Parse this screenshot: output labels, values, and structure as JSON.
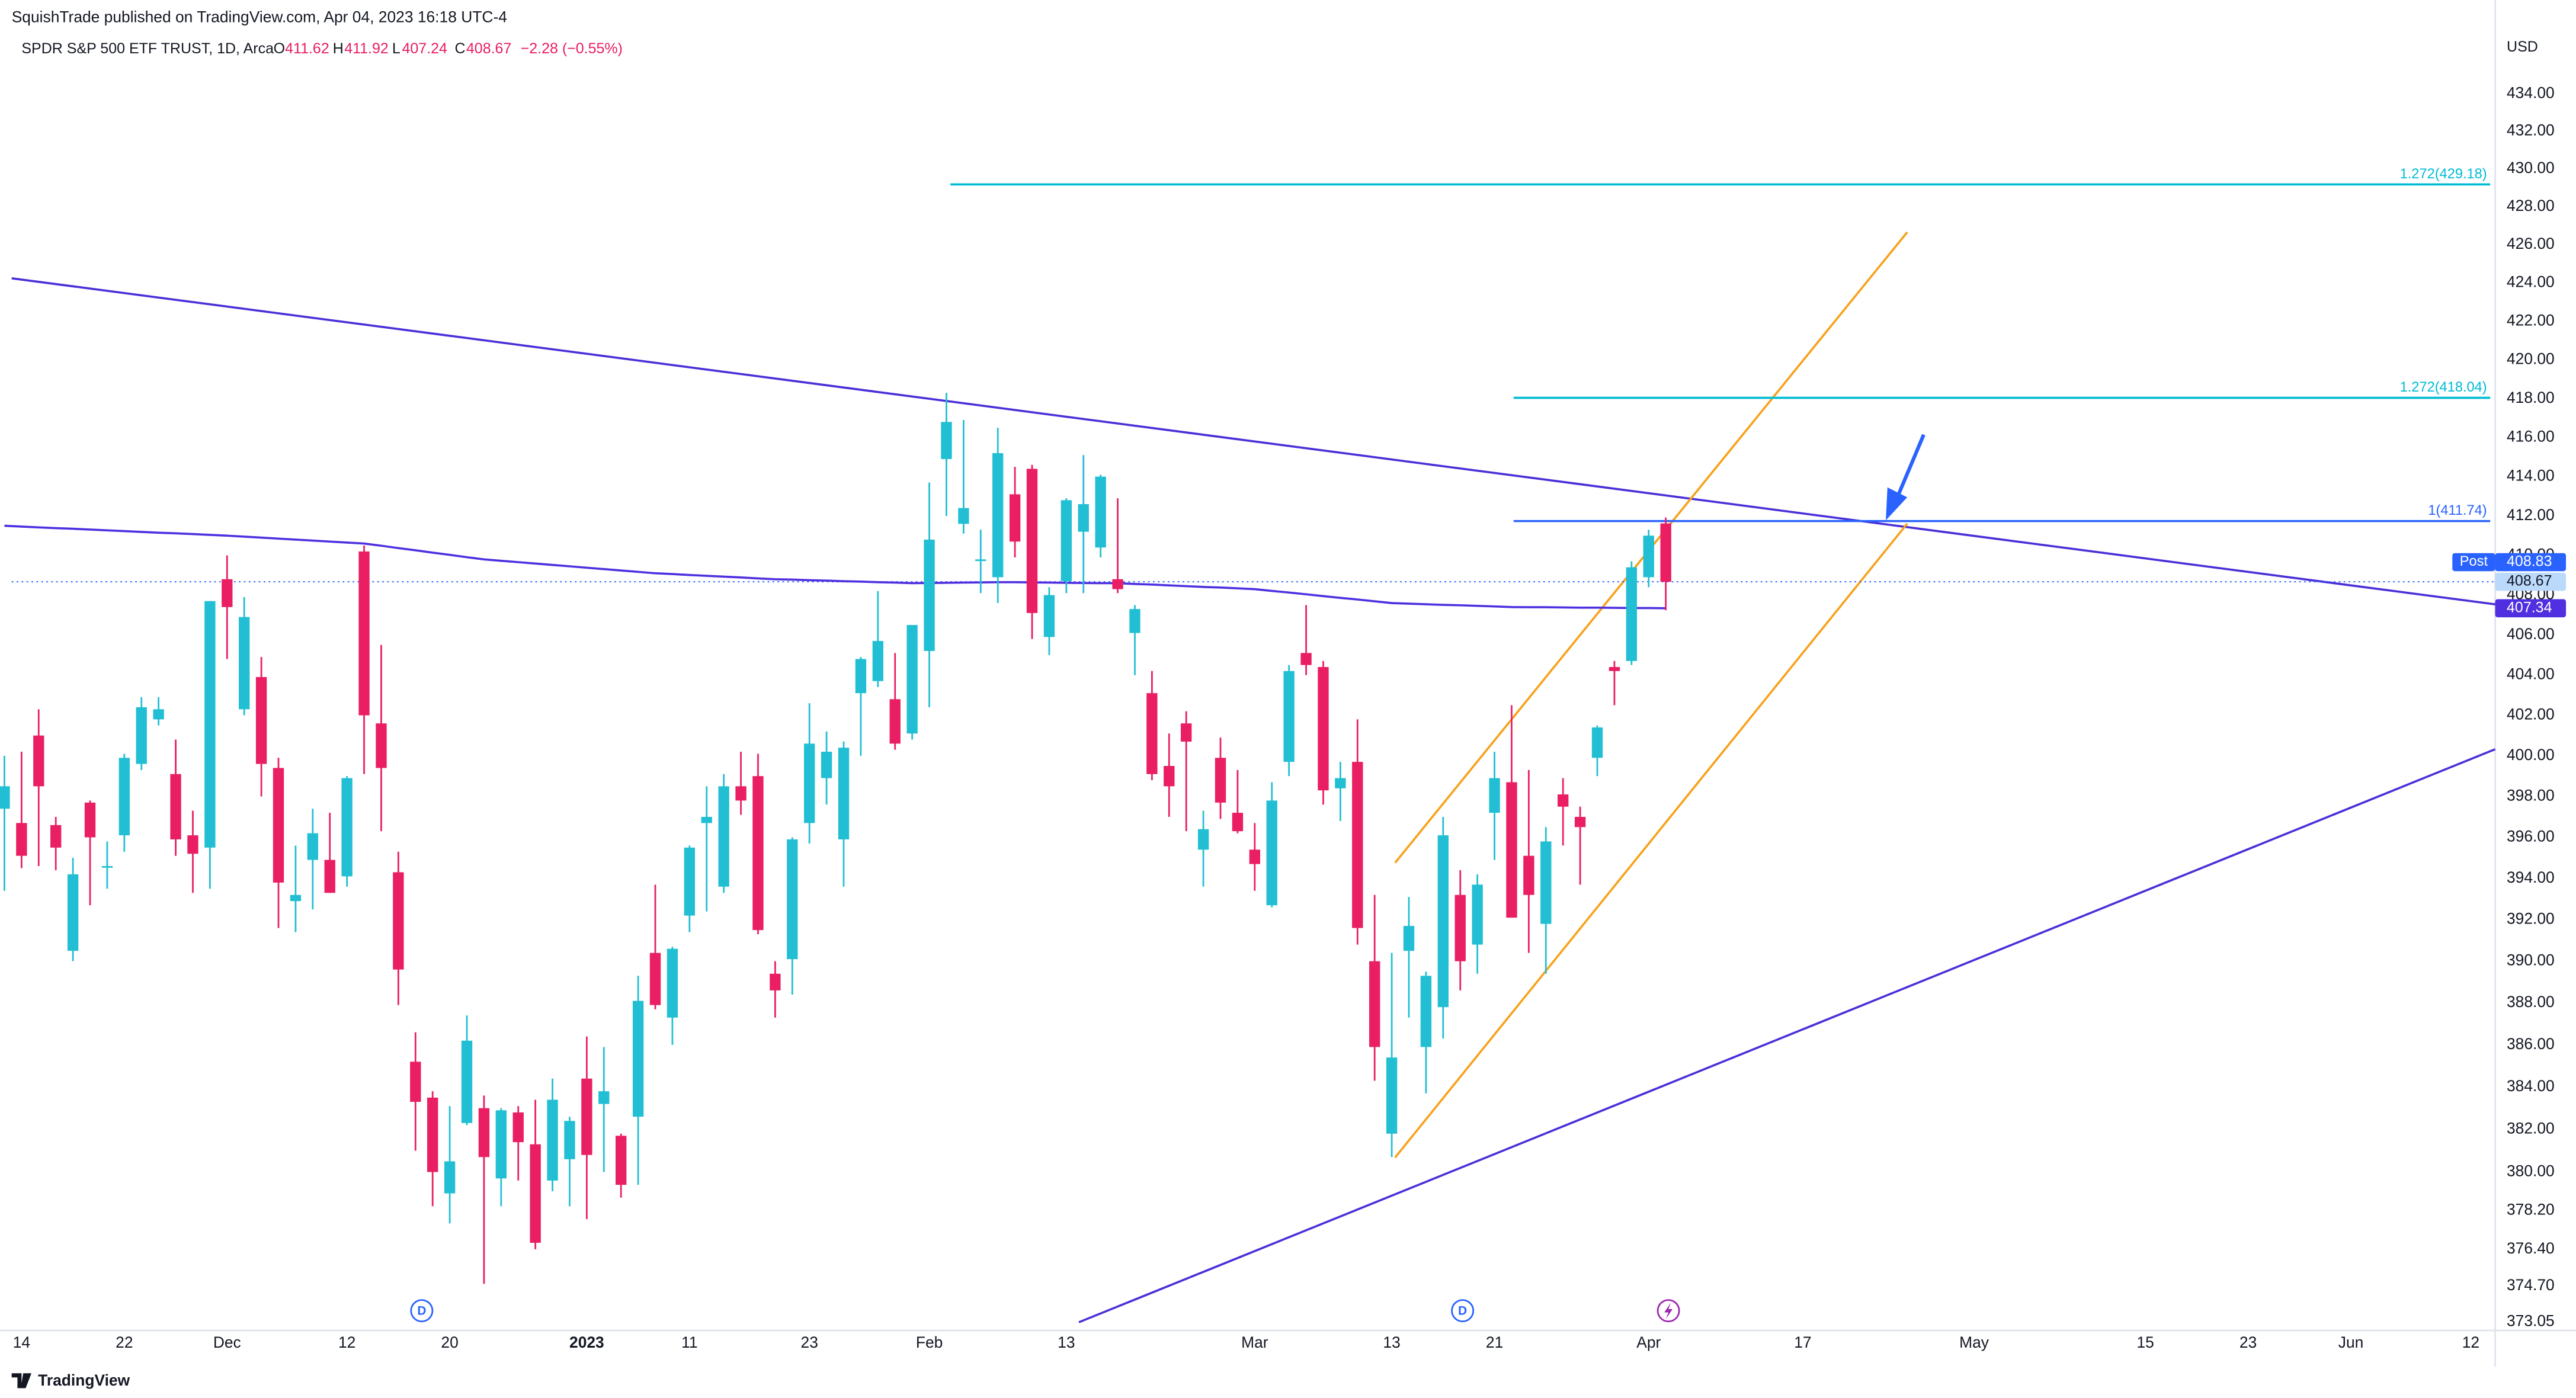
{
  "header": {
    "published": "SquishTrade published on TradingView.com, Apr 04, 2023 16:18 UTC-4",
    "brand": "TradingView"
  },
  "chart_data": {
    "type": "candlestick",
    "title": "SPDR S&P 500 ETF TRUST, 1D, Arca",
    "ohlc_labels": [
      "O",
      "H",
      "L",
      "C"
    ],
    "change": "−2.28 (−0.55%)",
    "unit": "USD",
    "up_color": "#22bfd4",
    "down_color": "#e91e63",
    "log_scale": true,
    "grid": false,
    "ylim": [
      372.65,
      435.94
    ],
    "yticks": [
      {
        "value": 434,
        "label": "434.00"
      },
      {
        "value": 432,
        "label": "432.00"
      },
      {
        "value": 430,
        "label": "430.00"
      },
      {
        "value": 428,
        "label": "428.00"
      },
      {
        "value": 426,
        "label": "426.00"
      },
      {
        "value": 424,
        "label": "424.00"
      },
      {
        "value": 422,
        "label": "422.00"
      },
      {
        "value": 420,
        "label": "420.00"
      },
      {
        "value": 418,
        "label": "418.00"
      },
      {
        "value": 416,
        "label": "416.00"
      },
      {
        "value": 414,
        "label": "414.00"
      },
      {
        "value": 412,
        "label": "412.00"
      },
      {
        "value": 410,
        "label": "410.00"
      },
      {
        "value": 408,
        "label": "408.00"
      },
      {
        "value": 406,
        "label": "406.00"
      },
      {
        "value": 404,
        "label": "404.00"
      },
      {
        "value": 402,
        "label": "402.00"
      },
      {
        "value": 400,
        "label": "400.00"
      },
      {
        "value": 398,
        "label": "398.00"
      },
      {
        "value": 396,
        "label": "396.00"
      },
      {
        "value": 394,
        "label": "394.00"
      },
      {
        "value": 392,
        "label": "392.00"
      },
      {
        "value": 390,
        "label": "390.00"
      },
      {
        "value": 388,
        "label": "388.00"
      },
      {
        "value": 386,
        "label": "386.00"
      },
      {
        "value": 384,
        "label": "384.00"
      },
      {
        "value": 382,
        "label": "382.00"
      },
      {
        "value": 380,
        "label": "380.00"
      },
      {
        "value": 378.2,
        "label": "378.20"
      },
      {
        "value": 376.4,
        "label": "376.40"
      },
      {
        "value": 374.7,
        "label": "374.70"
      },
      {
        "value": 373.05,
        "label": "373.05"
      }
    ],
    "categories": [
      null,
      "14",
      null,
      null,
      null,
      null,
      null,
      "22",
      null,
      null,
      null,
      null,
      null,
      "Dec",
      null,
      null,
      null,
      null,
      null,
      null,
      "12",
      null,
      null,
      null,
      null,
      null,
      "20",
      null,
      null,
      null,
      null,
      null,
      null,
      null,
      "2023",
      null,
      null,
      null,
      null,
      null,
      "11",
      null,
      null,
      null,
      null,
      null,
      null,
      "23",
      null,
      null,
      null,
      null,
      null,
      null,
      "Feb",
      null,
      null,
      null,
      null,
      null,
      null,
      null,
      "13",
      null,
      null,
      null,
      null,
      null,
      null,
      null,
      null,
      null,
      null,
      "Mar",
      null,
      null,
      null,
      null,
      null,
      null,
      null,
      "13",
      null,
      null,
      null,
      null,
      null,
      "21",
      null,
      null,
      null,
      null,
      null,
      null,
      null,
      null,
      "Apr",
      null,
      null,
      null,
      null,
      null,
      null,
      null,
      null,
      "17",
      null,
      null,
      null,
      null,
      null,
      null,
      null,
      null,
      null,
      "May",
      null,
      null,
      null,
      null,
      null,
      null,
      null,
      null,
      null,
      "15",
      null,
      null,
      null,
      null,
      null,
      "23",
      null,
      null,
      null,
      null,
      null,
      "Jun",
      null,
      null,
      null,
      null,
      null,
      null,
      "12",
      null
    ],
    "open": [
      397.4,
      396.7,
      401.0,
      396.6,
      390.5,
      397.7,
      394.6,
      396.1,
      399.6,
      401.8,
      399.1,
      396.1,
      395.5,
      408.8,
      402.3,
      403.9,
      399.4,
      392.9,
      394.9,
      394.9,
      394.1,
      410.2,
      401.6,
      394.3,
      385.2,
      383.5,
      379.0,
      382.3,
      383.0,
      379.7,
      382.8,
      381.3,
      379.6,
      380.6,
      384.4,
      383.2,
      381.7,
      382.6,
      390.4,
      387.3,
      392.2,
      396.7,
      393.6,
      398.5,
      399.0,
      389.4,
      390.1,
      396.7,
      398.9,
      395.9,
      403.1,
      403.7,
      402.8,
      401.1,
      405.2,
      414.9,
      411.6,
      409.8,
      408.9,
      413.1,
      414.4,
      405.9,
      408.7,
      411.2,
      410.4,
      408.8,
      406.1,
      403.1,
      399.5,
      401.6,
      395.4,
      399.9,
      397.2,
      395.4,
      392.7,
      399.7,
      405.1,
      404.4,
      398.4,
      399.7,
      390.0,
      381.8,
      390.5,
      385.9,
      387.8,
      393.2,
      390.8,
      397.2,
      398.7,
      395.1,
      391.8,
      398.1,
      397.0,
      399.9,
      404.4,
      404.7,
      408.9,
      411.62,
      null,
      null,
      null,
      null,
      null,
      null,
      null,
      null,
      null,
      null,
      null,
      null,
      null,
      null,
      null,
      null,
      null,
      null,
      null,
      null,
      null,
      null,
      null,
      null,
      null,
      null,
      null,
      null,
      null,
      null,
      null,
      null,
      null,
      null,
      null,
      null,
      null,
      null,
      null,
      null,
      null,
      null,
      null,
      null,
      null,
      null,
      null,
      null
    ],
    "high": [
      400.0,
      400.2,
      402.3,
      397.0,
      395.0,
      397.8,
      395.8,
      400.1,
      402.9,
      402.9,
      400.8,
      397.3,
      407.7,
      410.0,
      407.9,
      404.9,
      399.9,
      395.6,
      397.4,
      397.2,
      399.0,
      410.5,
      405.5,
      395.3,
      386.6,
      383.8,
      383.1,
      387.4,
      383.6,
      383.0,
      383.1,
      383.4,
      384.4,
      382.6,
      386.4,
      385.9,
      381.8,
      389.3,
      393.7,
      390.7,
      395.6,
      398.5,
      399.1,
      400.2,
      400.1,
      390.0,
      396.0,
      402.6,
      401.2,
      400.7,
      404.9,
      408.2,
      405.1,
      406.5,
      413.7,
      418.3,
      416.9,
      411.3,
      416.5,
      414.5,
      414.6,
      408.4,
      412.9,
      415.1,
      414.1,
      412.9,
      407.5,
      404.2,
      401.1,
      402.2,
      397.3,
      400.9,
      399.3,
      396.7,
      398.7,
      404.5,
      407.5,
      404.7,
      399.7,
      401.8,
      393.2,
      390.4,
      393.1,
      389.5,
      397.0,
      394.4,
      394.2,
      400.2,
      402.5,
      399.3,
      396.5,
      398.9,
      397.5,
      401.5,
      404.7,
      409.7,
      411.3,
      411.92,
      null,
      null,
      null,
      null,
      null,
      null,
      null,
      null,
      null,
      null,
      null,
      null,
      null,
      null,
      null,
      null,
      null,
      null,
      null,
      null,
      null,
      null,
      null,
      null,
      null,
      null,
      null,
      null,
      null,
      null,
      null,
      null,
      null,
      null,
      null,
      null,
      null,
      null,
      null,
      null,
      null,
      null,
      null,
      null,
      null,
      null,
      null,
      null
    ],
    "low": [
      393.4,
      394.5,
      394.6,
      394.4,
      390.0,
      392.7,
      393.5,
      395.3,
      399.3,
      401.5,
      395.1,
      393.3,
      393.5,
      404.8,
      402.0,
      398.0,
      391.6,
      391.4,
      392.5,
      393.3,
      393.6,
      399.1,
      396.3,
      387.9,
      381.0,
      378.4,
      377.6,
      382.2,
      374.8,
      378.4,
      379.6,
      376.4,
      379.1,
      378.4,
      377.8,
      380.0,
      378.8,
      379.4,
      387.7,
      386.0,
      391.4,
      392.4,
      393.3,
      397.1,
      391.3,
      387.3,
      388.4,
      395.7,
      397.6,
      393.6,
      400.0,
      403.4,
      400.3,
      400.8,
      402.4,
      412.0,
      411.1,
      408.1,
      407.6,
      409.9,
      405.8,
      405.0,
      408.1,
      408.1,
      409.9,
      408.1,
      404.0,
      398.8,
      397.0,
      396.3,
      393.6,
      396.9,
      396.2,
      393.4,
      392.6,
      399.0,
      404.0,
      397.6,
      396.8,
      390.8,
      384.3,
      380.7,
      387.3,
      383.7,
      386.3,
      388.6,
      389.4,
      394.9,
      392.1,
      390.4,
      389.4,
      395.6,
      393.7,
      399.0,
      402.5,
      404.5,
      408.4,
      407.24,
      null,
      null,
      null,
      null,
      null,
      null,
      null,
      null,
      null,
      null,
      null,
      null,
      null,
      null,
      null,
      null,
      null,
      null,
      null,
      null,
      null,
      null,
      null,
      null,
      null,
      null,
      null,
      null,
      null,
      null,
      null,
      null,
      null,
      null,
      null,
      null,
      null,
      null,
      null,
      null,
      null,
      null,
      null,
      null,
      null,
      null,
      null,
      null
    ],
    "close": [
      398.5,
      395.1,
      398.5,
      395.5,
      394.2,
      396.0,
      394.6,
      399.9,
      402.4,
      402.3,
      395.9,
      395.2,
      407.7,
      407.4,
      406.9,
      399.6,
      393.8,
      393.2,
      396.2,
      393.3,
      398.9,
      402.0,
      399.4,
      389.6,
      383.3,
      380.0,
      380.5,
      386.2,
      380.7,
      382.9,
      381.4,
      376.7,
      383.4,
      382.4,
      380.8,
      383.8,
      379.4,
      388.1,
      387.9,
      390.6,
      395.5,
      397.0,
      398.5,
      397.8,
      391.5,
      388.6,
      395.9,
      400.6,
      400.2,
      400.4,
      404.8,
      405.7,
      400.6,
      406.5,
      410.8,
      416.8,
      412.4,
      409.8,
      415.2,
      410.7,
      407.1,
      408.0,
      412.8,
      412.6,
      414.0,
      408.3,
      407.3,
      399.1,
      398.5,
      400.7,
      396.4,
      397.7,
      396.3,
      394.7,
      397.8,
      404.2,
      404.5,
      398.3,
      398.9,
      391.6,
      385.9,
      385.4,
      391.7,
      389.3,
      396.1,
      390.0,
      393.7,
      398.9,
      392.1,
      393.2,
      395.8,
      397.5,
      396.5,
      401.4,
      404.2,
      409.4,
      411.0,
      408.67,
      null,
      null,
      null,
      null,
      null,
      null,
      null,
      null,
      null,
      null,
      null,
      null,
      null,
      null,
      null,
      null,
      null,
      null,
      null,
      null,
      null,
      null,
      null,
      null,
      null,
      null,
      null,
      null,
      null,
      null,
      null,
      null,
      null,
      null,
      null,
      null,
      null,
      null,
      null,
      null,
      null,
      null,
      null,
      null,
      null,
      null,
      null,
      null
    ],
    "moving_average": {
      "color": "#4f2fe0",
      "values": [
        411.5,
        411.46,
        411.42,
        411.38,
        411.35,
        411.31,
        411.27,
        411.23,
        411.19,
        411.15,
        411.12,
        411.08,
        411.04,
        411.0,
        410.95,
        410.9,
        410.85,
        410.8,
        410.75,
        410.7,
        410.65,
        410.6,
        410.49,
        410.37,
        410.26,
        410.14,
        410.03,
        409.91,
        409.8,
        409.73,
        409.66,
        409.59,
        409.52,
        409.45,
        409.38,
        409.31,
        409.24,
        409.17,
        409.1,
        409.06,
        409.01,
        408.97,
        408.93,
        408.89,
        408.84,
        408.8,
        408.78,
        408.75,
        408.73,
        408.7,
        408.68,
        408.65,
        408.63,
        408.6,
        408.61,
        408.62,
        408.63,
        408.64,
        408.65,
        408.65,
        408.64,
        408.63,
        408.62,
        408.61,
        408.6,
        408.6,
        408.56,
        408.53,
        408.49,
        408.45,
        408.41,
        408.38,
        408.34,
        408.3,
        408.21,
        408.13,
        408.04,
        407.95,
        407.86,
        407.78,
        407.69,
        407.6,
        407.57,
        407.54,
        407.51,
        407.49,
        407.46,
        407.43,
        407.4,
        407.39,
        407.39,
        407.38,
        407.37,
        407.37,
        407.36,
        407.35,
        407.35,
        407.34,
        null,
        null,
        null,
        null,
        null,
        null,
        null,
        null,
        null,
        null,
        null,
        null,
        null,
        null,
        null,
        null,
        null,
        null,
        null,
        null,
        null,
        null,
        null,
        null,
        null,
        null,
        null,
        null,
        null,
        null,
        null,
        null,
        null,
        null,
        null,
        null,
        null,
        null,
        null,
        null,
        null,
        null,
        null,
        null,
        null,
        null,
        null,
        null
      ]
    },
    "post_label": "Post",
    "post_price": 408.83,
    "levels": [
      {
        "label": "1.272(429.18)",
        "value": 429.18,
        "color": "#00bcd4"
      },
      {
        "label": "1.272(418.04)",
        "value": 418.04,
        "color": "#00bcd4"
      },
      {
        "label": "1(411.74)",
        "value": 411.74,
        "color": "#2962ff"
      }
    ],
    "events": [
      {
        "label": "D"
      },
      {
        "label": "D"
      }
    ]
  }
}
